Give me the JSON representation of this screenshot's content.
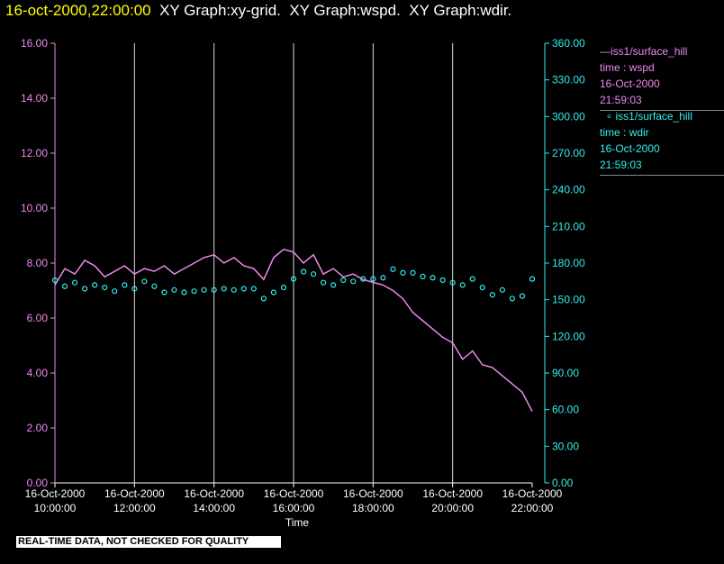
{
  "header": {
    "date": "16-oct-2000,22:00:00",
    "graphs": [
      "XY Graph:xy-grid.",
      "XY Graph:wspd.",
      "XY Graph:wdir."
    ]
  },
  "legend": [
    {
      "line1": "iss1/surface_hill",
      "line2": "time : wspd",
      "line3": "16-Oct-2000",
      "line4": "21:59:03",
      "color": "#ee88ee",
      "marker": "line"
    },
    {
      "line1": "iss1/surface_hill",
      "line2": "time : wdir",
      "line3": "16-Oct-2000",
      "line4": "21:59:03",
      "color": "#33eeee",
      "marker": "circle"
    }
  ],
  "footer_note": "REAL-TIME DATA, NOT CHECKED FOR QUALITY",
  "chart_data": {
    "type": "line",
    "xlabel": "Time",
    "x_range_hours": [
      10,
      22
    ],
    "x_ticks": [
      {
        "date": "16-Oct-2000",
        "time": "10:00:00",
        "hour": 10
      },
      {
        "date": "16-Oct-2000",
        "time": "12:00:00",
        "hour": 12
      },
      {
        "date": "16-Oct-2000",
        "time": "14:00:00",
        "hour": 14
      },
      {
        "date": "16-Oct-2000",
        "time": "16:00:00",
        "hour": 16
      },
      {
        "date": "16-Oct-2000",
        "time": "18:00:00",
        "hour": 18
      },
      {
        "date": "16-Oct-2000",
        "time": "20:00:00",
        "hour": 20
      },
      {
        "date": "16-Oct-2000",
        "time": "22:00:00",
        "hour": 22
      }
    ],
    "y_left": {
      "min": 0,
      "max": 16,
      "ticks": [
        "0.00",
        "2.00",
        "4.00",
        "6.00",
        "8.00",
        "10.00",
        "12.00",
        "14.00",
        "16.00"
      ],
      "color": "#ee88ee"
    },
    "y_right": {
      "min": 0,
      "max": 360,
      "ticks": [
        "0.00",
        "30.00",
        "60.00",
        "90.00",
        "120.00",
        "150.00",
        "180.00",
        "210.00",
        "240.00",
        "270.00",
        "300.00",
        "330.00",
        "360.00"
      ],
      "color": "#33eeee"
    },
    "grid": "vertical lines at each x tick",
    "series": [
      {
        "name": "iss1/surface_hill time : wspd",
        "axis": "left",
        "style": "line",
        "color": "#ee88ee",
        "x": [
          10.0,
          10.25,
          10.5,
          10.75,
          11.0,
          11.25,
          11.5,
          11.75,
          12.0,
          12.25,
          12.5,
          12.75,
          13.0,
          13.25,
          13.5,
          13.75,
          14.0,
          14.25,
          14.5,
          14.75,
          15.0,
          15.25,
          15.5,
          15.75,
          16.0,
          16.25,
          16.5,
          16.75,
          17.0,
          17.25,
          17.5,
          17.75,
          18.0,
          18.25,
          18.5,
          18.75,
          19.0,
          19.25,
          19.5,
          19.75,
          20.0,
          20.25,
          20.5,
          20.75,
          21.0,
          21.25,
          21.5,
          21.75,
          22.0
        ],
        "values": [
          7.2,
          7.8,
          7.6,
          8.1,
          7.9,
          7.5,
          7.7,
          7.9,
          7.6,
          7.8,
          7.7,
          7.9,
          7.6,
          7.8,
          8.0,
          8.2,
          8.3,
          8.0,
          8.2,
          7.9,
          7.8,
          7.4,
          8.2,
          8.5,
          8.4,
          8.0,
          8.3,
          7.6,
          7.8,
          7.5,
          7.6,
          7.4,
          7.3,
          7.2,
          7.0,
          6.7,
          6.2,
          5.9,
          5.6,
          5.3,
          5.1,
          4.5,
          4.8,
          4.3,
          4.2,
          3.9,
          3.6,
          3.3,
          2.6
        ]
      },
      {
        "name": "iss1/surface_hill time : wdir",
        "axis": "right",
        "style": "scatter",
        "color": "#33eeee",
        "x": [
          10.0,
          10.25,
          10.5,
          10.75,
          11.0,
          11.25,
          11.5,
          11.75,
          12.0,
          12.25,
          12.5,
          12.75,
          13.0,
          13.25,
          13.5,
          13.75,
          14.0,
          14.25,
          14.5,
          14.75,
          15.0,
          15.25,
          15.5,
          15.75,
          16.0,
          16.25,
          16.5,
          16.75,
          17.0,
          17.25,
          17.5,
          17.75,
          18.0,
          18.25,
          18.5,
          18.75,
          19.0,
          19.25,
          19.5,
          19.75,
          20.0,
          20.25,
          20.5,
          20.75,
          21.0,
          21.25,
          21.5,
          21.75,
          22.0
        ],
        "values": [
          166,
          161,
          164,
          159,
          162,
          160,
          157,
          162,
          159,
          165,
          161,
          156,
          158,
          156,
          157,
          158,
          158,
          159,
          158,
          159,
          159,
          151,
          156,
          160,
          167,
          173,
          171,
          164,
          162,
          166,
          165,
          167,
          167,
          168,
          175,
          172,
          172,
          169,
          168,
          166,
          164,
          162,
          167,
          160,
          154,
          158,
          151,
          153,
          167
        ]
      }
    ]
  }
}
